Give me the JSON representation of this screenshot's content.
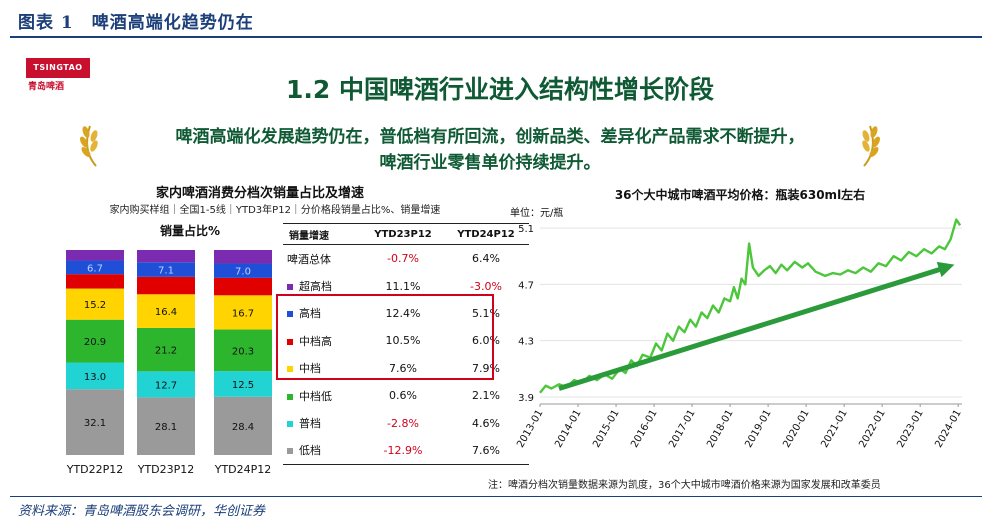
{
  "figure": {
    "title": "图表 1　啤酒高端化趋势仍在",
    "source": "资料来源：青岛啤酒股东会调研，华创证券"
  },
  "logo": {
    "brand": "TSINGTAO",
    "brand_cn": "青岛啤酒"
  },
  "slide": {
    "title": "1.2 中国啤酒行业进入结构性增长阶段",
    "highlight_line1": "啤酒高端化发展趋势仍在，普低档有所回流，创新品类、差异化产品需求不断提升，",
    "highlight_line2": "啤酒行业零售单价持续提升。",
    "note": "注：啤酒分档次销量数据来源为凯度，36个大中城市啤酒价格来源为国家发展和改革委员"
  },
  "colors": {
    "green_text": "#0f5a34",
    "red": "#d0021b",
    "line": "#4cc63a",
    "arrow": "#2a9a3a"
  },
  "chart_data": [
    {
      "type": "bar",
      "stacked": true,
      "title": "家内啤酒消费分档次销量占比及增速",
      "subtitle": "家内购买样组｜全国1-5线｜YTD3年P12｜分价格段销量占比%、销量增速",
      "ylabel": "销量占比%",
      "categories": [
        "YTD22P12",
        "YTD23P12",
        "YTD24P12"
      ],
      "series": [
        {
          "name": "低档",
          "color": "#9a9a9a",
          "values": [
            32.1,
            28.1,
            28.4
          ],
          "labels": [
            "32.1",
            "28.1",
            "28.4"
          ]
        },
        {
          "name": "普档",
          "color": "#22d3d3",
          "values": [
            13.0,
            12.7,
            12.5
          ],
          "labels": [
            "13.0",
            "12.7",
            "12.5"
          ]
        },
        {
          "name": "中档低",
          "color": "#2db52d",
          "values": [
            20.9,
            21.2,
            20.3
          ],
          "labels": [
            "20.9",
            "21.2",
            "20.3"
          ]
        },
        {
          "name": "中档",
          "color": "#ffd400",
          "values": [
            15.2,
            16.4,
            16.7
          ],
          "labels": [
            "15.2",
            "16.4",
            "16.7"
          ]
        },
        {
          "name": "中档高",
          "color": "#e00000",
          "values": [
            7.0,
            8.5,
            8.5
          ],
          "labels": [
            "",
            "",
            ""
          ]
        },
        {
          "name": "高档",
          "color": "#1f4fd6",
          "values": [
            6.7,
            7.1,
            7.0
          ],
          "labels": [
            "6.7",
            "7.1",
            "7.0"
          ]
        },
        {
          "name": "超高档",
          "color": "#7a2bb0",
          "values": [
            5.1,
            6.0,
            6.6
          ],
          "labels": [
            "",
            "",
            ""
          ]
        }
      ]
    },
    {
      "type": "table",
      "headers": [
        "销量增速",
        "YTD23P12",
        "YTD24P12"
      ],
      "rows": [
        {
          "swatch": "",
          "name": "啤酒总体",
          "v1": "-0.7%",
          "v2": "6.4%"
        },
        {
          "swatch": "#7a2bb0",
          "name": "超高档",
          "v1": "11.1%",
          "v2": "-3.0%"
        },
        {
          "swatch": "#1f4fd6",
          "name": "高档",
          "v1": "12.4%",
          "v2": "5.1%"
        },
        {
          "swatch": "#e00000",
          "name": "中档高",
          "v1": "10.5%",
          "v2": "6.0%"
        },
        {
          "swatch": "#ffd400",
          "name": "中档",
          "v1": "7.6%",
          "v2": "7.9%"
        },
        {
          "swatch": "#2db52d",
          "name": "中档低",
          "v1": "0.6%",
          "v2": "2.1%"
        },
        {
          "swatch": "#22d3d3",
          "name": "普档",
          "v1": "-2.8%",
          "v2": "4.6%"
        },
        {
          "swatch": "#9a9a9a",
          "name": "低档",
          "v1": "-12.9%",
          "v2": "7.6%"
        }
      ]
    },
    {
      "type": "line",
      "title": "36个大中城市啤酒平均价格：瓶装630ml左右",
      "unit": "单位：元/瓶",
      "ylim": [
        3.85,
        5.2
      ],
      "yticks": [
        3.9,
        4.3,
        4.7,
        5.1
      ],
      "ytick_labels": [
        "3.9",
        "4.3",
        "4.7",
        "5.1"
      ],
      "xlim": [
        2013.0,
        2024.1
      ],
      "xticks": [
        2013,
        2014,
        2015,
        2016,
        2017,
        2018,
        2019,
        2020,
        2021,
        2022,
        2023,
        2024
      ],
      "xtick_labels": [
        "2013-01",
        "2014-01",
        "2015-01",
        "2016-01",
        "2017-01",
        "2018-01",
        "2019-01",
        "2020-01",
        "2021-01",
        "2022-01",
        "2023-01",
        "2024-01"
      ],
      "points": [
        [
          2013.0,
          3.93
        ],
        [
          2013.15,
          3.98
        ],
        [
          2013.3,
          3.96
        ],
        [
          2013.5,
          3.99
        ],
        [
          2013.7,
          3.97
        ],
        [
          2013.9,
          4.02
        ],
        [
          2014.1,
          4.0
        ],
        [
          2014.3,
          4.05
        ],
        [
          2014.5,
          4.02
        ],
        [
          2014.7,
          4.06
        ],
        [
          2014.9,
          4.03
        ],
        [
          2015.1,
          4.1
        ],
        [
          2015.25,
          4.07
        ],
        [
          2015.4,
          4.16
        ],
        [
          2015.55,
          4.12
        ],
        [
          2015.7,
          4.2
        ],
        [
          2015.9,
          4.18
        ],
        [
          2016.05,
          4.28
        ],
        [
          2016.2,
          4.23
        ],
        [
          2016.35,
          4.35
        ],
        [
          2016.5,
          4.3
        ],
        [
          2016.65,
          4.4
        ],
        [
          2016.8,
          4.36
        ],
        [
          2016.95,
          4.45
        ],
        [
          2017.1,
          4.4
        ],
        [
          2017.25,
          4.5
        ],
        [
          2017.4,
          4.46
        ],
        [
          2017.55,
          4.55
        ],
        [
          2017.7,
          4.5
        ],
        [
          2017.85,
          4.6
        ],
        [
          2018.0,
          4.58
        ],
        [
          2018.1,
          4.68
        ],
        [
          2018.2,
          4.6
        ],
        [
          2018.3,
          4.74
        ],
        [
          2018.4,
          4.7
        ],
        [
          2018.5,
          4.99
        ],
        [
          2018.6,
          4.82
        ],
        [
          2018.75,
          4.76
        ],
        [
          2018.9,
          4.8
        ],
        [
          2019.05,
          4.83
        ],
        [
          2019.2,
          4.78
        ],
        [
          2019.35,
          4.84
        ],
        [
          2019.5,
          4.8
        ],
        [
          2019.7,
          4.86
        ],
        [
          2019.9,
          4.82
        ],
        [
          2020.05,
          4.85
        ],
        [
          2020.25,
          4.79
        ],
        [
          2020.5,
          4.76
        ],
        [
          2020.7,
          4.78
        ],
        [
          2020.9,
          4.77
        ],
        [
          2021.1,
          4.8
        ],
        [
          2021.3,
          4.78
        ],
        [
          2021.5,
          4.82
        ],
        [
          2021.7,
          4.79
        ],
        [
          2021.9,
          4.85
        ],
        [
          2022.1,
          4.83
        ],
        [
          2022.3,
          4.9
        ],
        [
          2022.5,
          4.87
        ],
        [
          2022.7,
          4.93
        ],
        [
          2022.9,
          4.9
        ],
        [
          2023.1,
          4.95
        ],
        [
          2023.3,
          4.92
        ],
        [
          2023.5,
          4.97
        ],
        [
          2023.65,
          4.95
        ],
        [
          2023.8,
          5.02
        ],
        [
          2023.95,
          5.16
        ],
        [
          2024.05,
          5.12
        ]
      ],
      "trend_arrow": {
        "from": [
          2013.5,
          3.96
        ],
        "to": [
          2023.9,
          4.84
        ]
      }
    }
  ]
}
